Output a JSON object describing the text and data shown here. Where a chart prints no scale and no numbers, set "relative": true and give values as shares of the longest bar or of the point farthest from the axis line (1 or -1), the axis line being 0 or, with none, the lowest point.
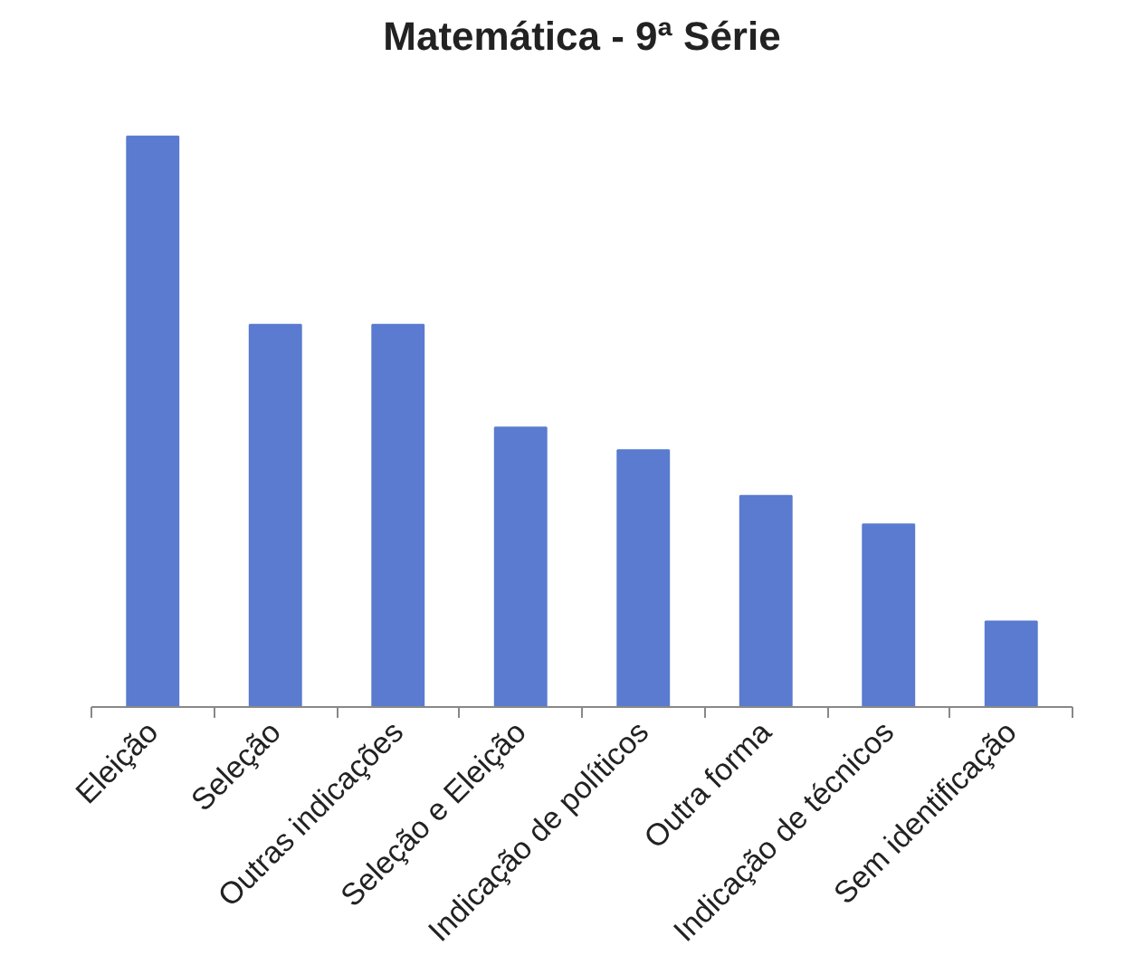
{
  "chart_data": {
    "type": "bar",
    "title": "Matemática - 9ª Série",
    "categories": [
      "Eleição",
      "Seleção",
      "Outras indicações",
      "Seleção e Eleição",
      "Indicação de políticos",
      "Outra forma",
      "Indicação de técnicos",
      "Sem identificação"
    ],
    "values": [
      1,
      0.67,
      0.67,
      0.49,
      0.45,
      0.37,
      0.32,
      0.15
    ],
    "color": "#5a7bd0",
    "relative": true,
    "grid": false
  }
}
